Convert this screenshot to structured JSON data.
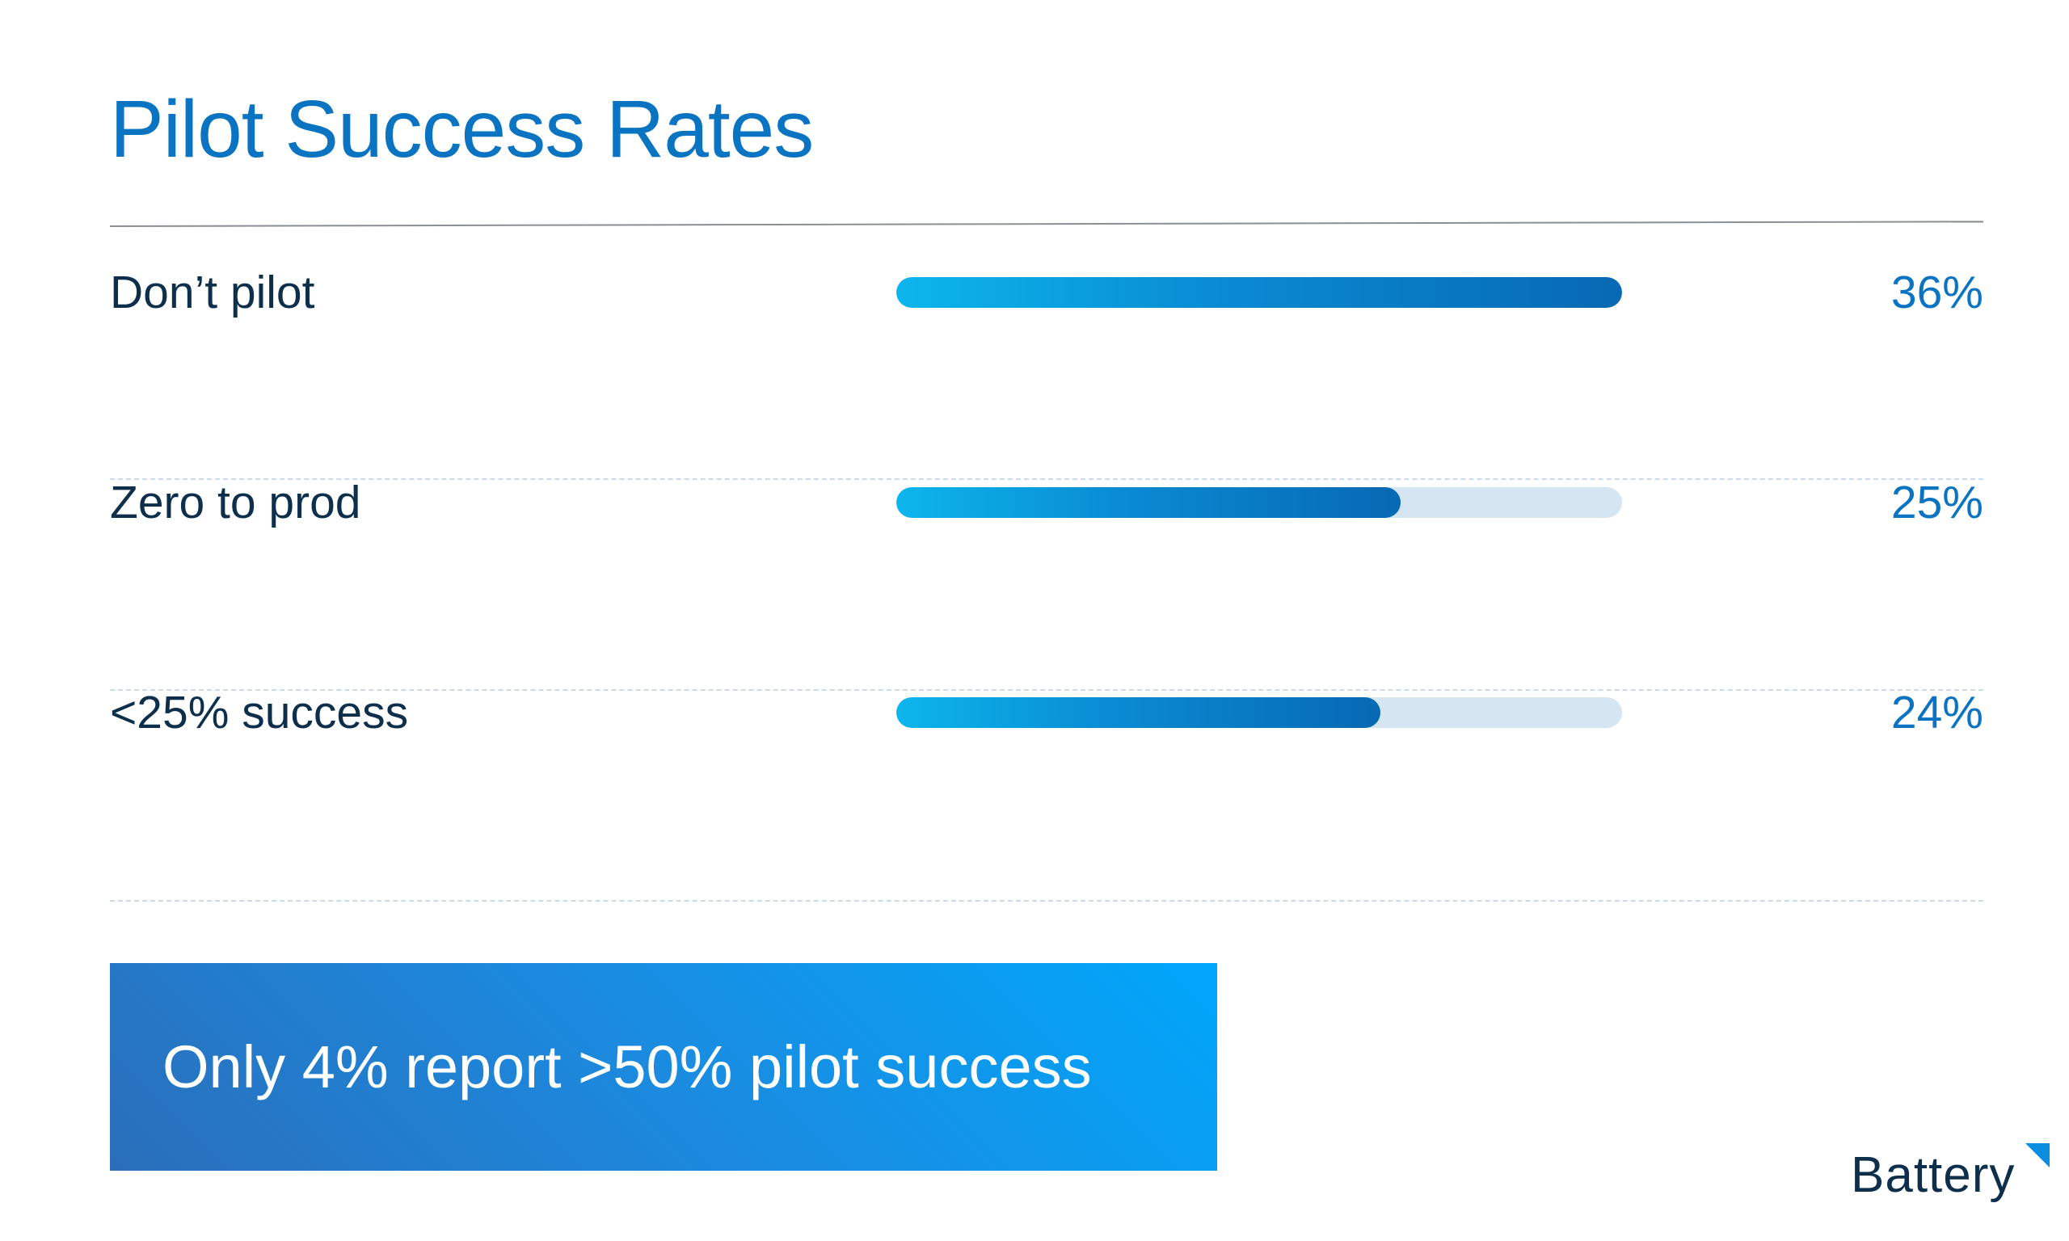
{
  "title": "Pilot Success Rates",
  "chart_data": {
    "type": "bar",
    "orientation": "horizontal",
    "title": "Pilot Success Rates",
    "categories": [
      "Don’t pilot",
      "Zero to prod",
      "<25% success"
    ],
    "values": [
      36,
      25,
      24
    ],
    "value_labels": [
      "36%",
      "25%",
      "24%"
    ],
    "unit": "%",
    "scale_max": 36,
    "grid": false,
    "colors": {
      "bar_start": "#0cb6ec",
      "bar_end": "#0769b4",
      "track": "#d6e5f2"
    }
  },
  "callout": {
    "text": "Only 4% report >50% pilot success"
  },
  "logo": {
    "text": "Battery"
  },
  "colors": {
    "title": "#0a74c2",
    "text_dark": "#0e2f4c",
    "accent": "#00a7fb"
  }
}
